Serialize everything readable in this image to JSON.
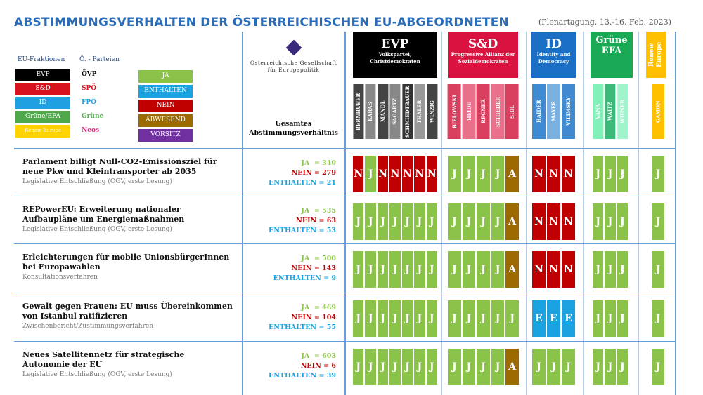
{
  "title": "ABSTIMMUNGSVERHALTEN DER ÖSTERREICHISCHEN  EU-ABGEORDNETEN",
  "subtitle": "(Plenartagung, 13.-16. Feb. 2023)",
  "legend": {
    "fraktionen_label": "EU-Fraktionen",
    "parteien_label": "Ö. - Parteien",
    "fraktionen": [
      {
        "label": "EVP",
        "color": "#000000",
        "party": "ÖVP",
        "pcolor": "#000000"
      },
      {
        "label": "S&D",
        "color": "#d7141e",
        "party": "SPÖ",
        "pcolor": "#d7141e"
      },
      {
        "label": "ID",
        "color": "#1fa0e0",
        "party": "FPÖ",
        "pcolor": "#1fa0e0"
      },
      {
        "label": "Grüne/EFA",
        "color": "#4ea84b",
        "party": "Grüne",
        "pcolor": "#4ea84b"
      },
      {
        "label": "Renew Europe",
        "color": "#ffd200",
        "party": "Neos",
        "pcolor": "#e0247a"
      }
    ],
    "votes": [
      {
        "label": "JA",
        "color": "#8bc34a"
      },
      {
        "label": "ENTHALTEN",
        "color": "#1aa3e0"
      },
      {
        "label": "NEIN",
        "color": "#c00000"
      },
      {
        "label": "ABWESEND",
        "color": "#9c6a00"
      },
      {
        "label": "VORSITZ",
        "color": "#7030a0"
      }
    ]
  },
  "logo_text": "Österreichische Gesellschaft für Europapolitik",
  "totals_header": "Gesamtes Abstimmungsverhältnis",
  "groups": [
    {
      "abbr": "EVP",
      "name": "Volkspartei, Christdemokraten",
      "color": "#000000",
      "members": [
        "BERNHUBER",
        "KARAS",
        "MANDL",
        "SAGARTZ",
        "SCHMIEDTBAUER",
        "THALER",
        "WINZIG"
      ],
      "mcolors": [
        "#444",
        "#888",
        "#444",
        "#888",
        "#333",
        "#999",
        "#444"
      ]
    },
    {
      "abbr": "S&D",
      "name": "Progressive Allianz der Sozialdemokraten",
      "color": "#d9123f",
      "members": [
        "BIELOWSKI",
        "HEIDE",
        "REGNER",
        "SCHIEDER",
        "SIDL"
      ],
      "mcolors": [
        "#d94060",
        "#e8708a",
        "#d94060",
        "#e8708a",
        "#d94060"
      ]
    },
    {
      "abbr": "ID",
      "name": "Identity and Democracy",
      "color": "#1a6fc4",
      "members": [
        "HAIDER",
        "MAYER",
        "VILIMSKY"
      ],
      "mcolors": [
        "#3f8ad0",
        "#7ab0e0",
        "#3f8ad0"
      ]
    },
    {
      "abbr": "Grüne EFA",
      "name": "",
      "color": "#1aaa55",
      "members": [
        "VANA",
        "WAITZ",
        "WIENER"
      ],
      "mcolors": [
        "#80f0b8",
        "#3cb878",
        "#a0f4cc"
      ]
    },
    {
      "abbr": "Renew Europe",
      "name": "",
      "color": "#ffc000",
      "members": [
        "GAMON"
      ],
      "mcolors": [
        "#ffc000"
      ]
    }
  ],
  "vote_colors": {
    "J": "#8bc34a",
    "N": "#c00000",
    "A": "#9c6a00",
    "E": "#1aa3e0"
  },
  "rows": [
    {
      "title": "Parlament billigt Null-CO2-Emissionsziel für neue Pkw und Kleintransporter ab 2035",
      "sub": "Legislative Entschließung (OGV, erste Lesung)",
      "ja": "JA  = 340",
      "nein": "NEIN = 279",
      "enth": "ENTHALTEN = 21",
      "votes": [
        [
          "N",
          "J",
          "N",
          "N",
          "N",
          "N",
          "N"
        ],
        [
          "J",
          "J",
          "J",
          "J",
          "A"
        ],
        [
          "N",
          "N",
          "N"
        ],
        [
          "J",
          "J",
          "J"
        ],
        [
          "J"
        ]
      ]
    },
    {
      "title": "REPowerEU: Erweiterung nationaler Aufbaupläne um Energiemaßnahmen",
      "sub": "Legislative Entschließung (OGV, erste Lesung)",
      "ja": "JA  = 535",
      "nein": "NEIN = 63",
      "enth": "ENTHALTEN = 53",
      "votes": [
        [
          "J",
          "J",
          "J",
          "J",
          "J",
          "J",
          "J"
        ],
        [
          "J",
          "J",
          "J",
          "J",
          "A"
        ],
        [
          "N",
          "N",
          "N"
        ],
        [
          "J",
          "J",
          "J"
        ],
        [
          "J"
        ]
      ]
    },
    {
      "title": "Erleichterungen für mobile UnionsbürgerInnen bei Europawahlen",
      "sub": "Konsultationsverfahren",
      "ja": "JA  = 500",
      "nein": "NEIN = 143",
      "enth": "ENTHALTEN = 9",
      "votes": [
        [
          "J",
          "J",
          "J",
          "J",
          "J",
          "J",
          "J"
        ],
        [
          "J",
          "J",
          "J",
          "J",
          "A"
        ],
        [
          "N",
          "N",
          "N"
        ],
        [
          "J",
          "J",
          "J"
        ],
        [
          "J"
        ]
      ]
    },
    {
      "title": "Gewalt gegen Frauen: EU muss Übereinkommen von Istanbul ratifizieren",
      "sub": "Zwischenbericht/Zustimmungsverfahren",
      "ja": "JA  = 469",
      "nein": "NEIN = 104",
      "enth": "ENTHALTEN = 55",
      "votes": [
        [
          "J",
          "J",
          "J",
          "J",
          "J",
          "J",
          "J"
        ],
        [
          "J",
          "J",
          "J",
          "J",
          "J"
        ],
        [
          "E",
          "E",
          "E"
        ],
        [
          "J",
          "J",
          "J"
        ],
        [
          "J"
        ]
      ]
    },
    {
      "title": "Neues Satellitennetz für strategische Autonomie der EU",
      "sub": "Legislative Entschließung (OGV, erste Lesung)",
      "ja": "JA  = 603",
      "nein": "NEIN = 6",
      "enth": "ENTHALTEN = 39",
      "votes": [
        [
          "J",
          "J",
          "J",
          "J",
          "J",
          "J",
          "J"
        ],
        [
          "J",
          "J",
          "J",
          "J",
          "A"
        ],
        [
          "J",
          "J",
          "J"
        ],
        [
          "J",
          "J",
          "J"
        ],
        [
          "J"
        ]
      ]
    }
  ]
}
